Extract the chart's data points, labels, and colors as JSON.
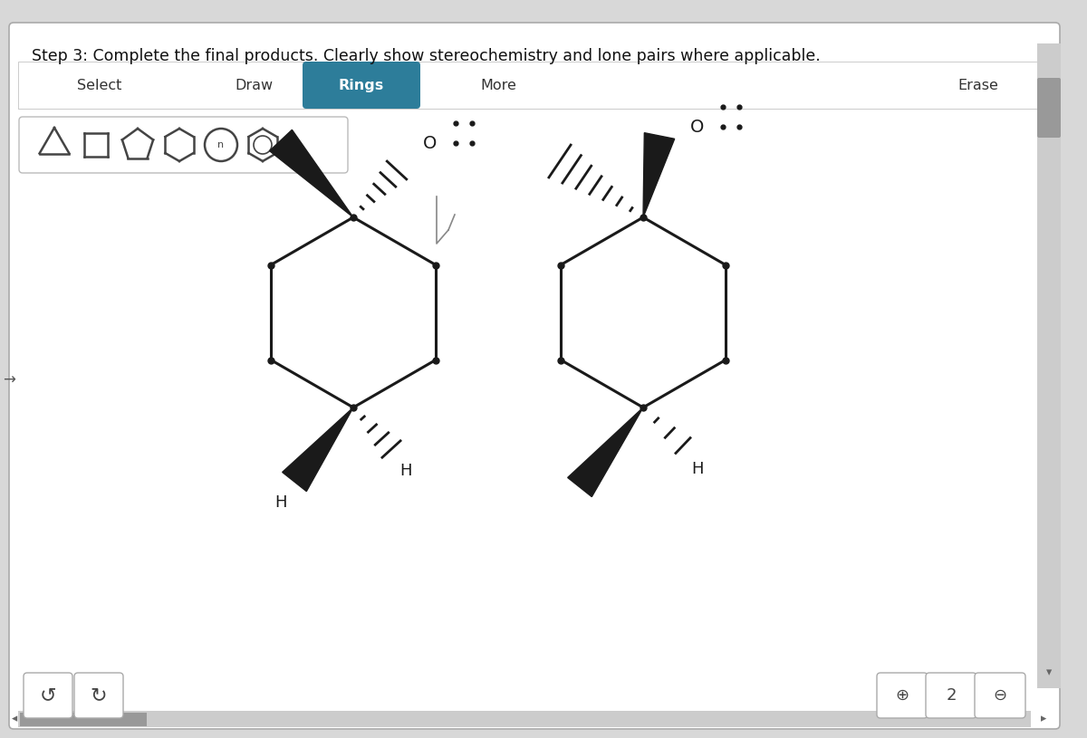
{
  "title": "Step 3: Complete the final products. Clearly show stereochemistry and lone pairs where applicable.",
  "bg_color": "#d8d8d8",
  "panel_color": "#f5f5f5",
  "toolbar_color": "#ffffff",
  "rings_color": "#2d7d9a",
  "line_color": "#1a1a1a",
  "select": "Select",
  "draw": "Draw",
  "rings": "Rings",
  "more": "More",
  "erase": "Erase",
  "m1x": 3.9,
  "m1y": 4.7,
  "m2x": 7.1,
  "m2y": 4.7,
  "ring_r": 1.05
}
